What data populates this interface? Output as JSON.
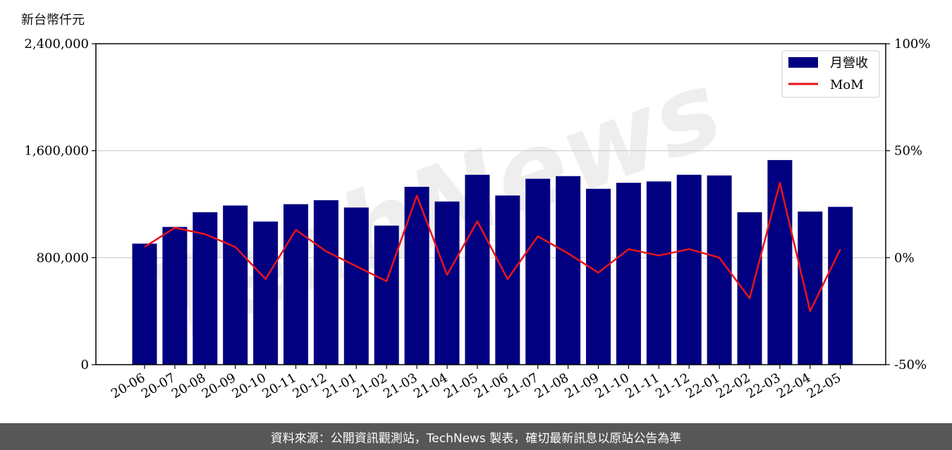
{
  "unit_label": "新台幣仟元",
  "footer_text": "資料來源：公開資訊觀測站，TechNews 製表，確切最新訊息以原站公告為準",
  "watermark": "TechNews",
  "colors": {
    "bar": "#000080",
    "line": "#e8141b",
    "grid": "#cccccc",
    "footer_bg": "#575757"
  },
  "chart_data": {
    "type": "bar+line",
    "categories": [
      "20-06",
      "20-07",
      "20-08",
      "20-09",
      "20-10",
      "20-11",
      "20-12",
      "21-01",
      "21-02",
      "21-03",
      "21-04",
      "21-05",
      "21-06",
      "21-07",
      "21-08",
      "21-09",
      "21-10",
      "21-11",
      "21-12",
      "22-01",
      "22-02",
      "22-03",
      "22-04",
      "22-05"
    ],
    "series": [
      {
        "name": "月營收",
        "type": "bar",
        "axis": "left",
        "values": [
          905000,
          1030000,
          1140000,
          1190000,
          1070000,
          1200000,
          1230000,
          1175000,
          1040000,
          1330000,
          1220000,
          1420000,
          1265000,
          1390000,
          1410000,
          1315000,
          1360000,
          1370000,
          1420000,
          1415000,
          1140000,
          1530000,
          1145000,
          1180000
        ]
      },
      {
        "name": "MoM",
        "type": "line",
        "axis": "right",
        "values": [
          5,
          14,
          11,
          5,
          -10,
          13,
          3,
          -4,
          -11,
          29,
          -8,
          17,
          -10,
          10,
          2,
          -7,
          4,
          1,
          4,
          0,
          -19,
          35,
          -25,
          4
        ]
      }
    ],
    "left_axis": {
      "ylim": [
        0,
        2400000
      ],
      "ticks": [
        0,
        800000,
        1600000,
        2400000
      ],
      "tick_labels": [
        "0",
        "800,000",
        "1,600,000",
        "2,400,000"
      ]
    },
    "right_axis": {
      "ylim": [
        -50,
        100
      ],
      "ticks": [
        -50,
        0,
        50,
        100
      ],
      "tick_labels": [
        "-50%",
        "0%",
        "50%",
        "100%"
      ]
    },
    "grid": "horizontal",
    "legend_position": "top-right",
    "legend": [
      "月營收",
      "MoM"
    ]
  }
}
